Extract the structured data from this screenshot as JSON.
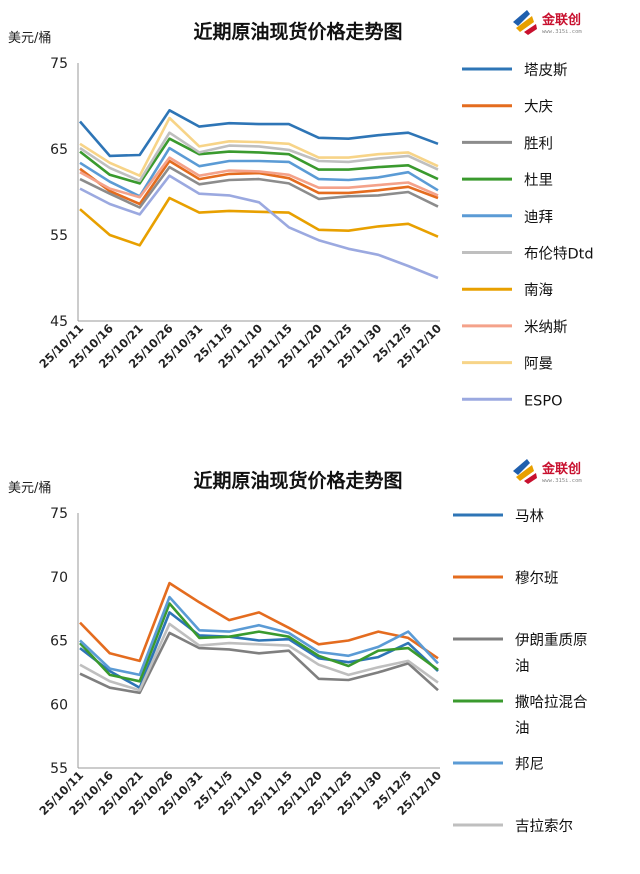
{
  "logo": {
    "name": "金联创",
    "url": "www.315i.com"
  },
  "chart_data": [
    {
      "type": "line",
      "title": "近期原油现货价格走势图",
      "ylabel": "美元/桶",
      "ylim": [
        45,
        75
      ],
      "yticks": [
        45,
        55,
        65,
        75
      ],
      "x": [
        "25/10/11",
        "25/10/16",
        "25/10/21",
        "25/10/26",
        "25/10/31",
        "25/11/5",
        "25/11/10",
        "25/11/15",
        "25/11/20",
        "25/11/25",
        "25/11/30",
        "25/12/5",
        "25/12/10"
      ],
      "xtick_labels": [
        "25/10/11",
        "25/10/16",
        "25/10/21",
        "25/10/26",
        "25/10/31",
        "25/11/5",
        "25/11/10",
        "25/11/15",
        "25/11/20",
        "25/11/25",
        "25/11/30",
        "25/12/5",
        "25/12/10"
      ],
      "legend_position": "right",
      "series": [
        {
          "name": "塔皮斯",
          "color": "#2e75b6",
          "values": [
            68.2,
            64.2,
            64.3,
            69.5,
            67.6,
            68.0,
            67.9,
            67.9,
            66.3,
            66.2,
            66.6,
            66.9,
            65.6
          ]
        },
        {
          "name": "大庆",
          "color": "#e46c1f",
          "values": [
            62.7,
            60.1,
            58.6,
            63.6,
            61.5,
            62.1,
            62.2,
            61.6,
            59.9,
            59.9,
            60.2,
            60.6,
            59.3
          ]
        },
        {
          "name": "胜利",
          "color": "#8c8c8c",
          "values": [
            61.5,
            59.8,
            58.2,
            62.9,
            60.9,
            61.4,
            61.5,
            61.0,
            59.2,
            59.5,
            59.6,
            60.0,
            58.3
          ]
        },
        {
          "name": "杜里",
          "color": "#3a9a2e",
          "values": [
            64.7,
            62.0,
            61.0,
            66.2,
            64.4,
            64.7,
            64.6,
            64.4,
            62.6,
            62.6,
            62.9,
            63.1,
            61.5
          ]
        },
        {
          "name": "迪拜",
          "color": "#5b9bd5",
          "values": [
            63.4,
            61.2,
            59.5,
            65.1,
            63.0,
            63.6,
            63.6,
            63.5,
            61.5,
            61.4,
            61.7,
            62.3,
            60.2
          ]
        },
        {
          "name": "布伦特Dtd",
          "color": "#bfbfbf",
          "values": [
            65.1,
            62.8,
            61.3,
            66.9,
            64.6,
            65.4,
            65.3,
            64.9,
            63.6,
            63.5,
            63.9,
            64.2,
            62.6
          ]
        },
        {
          "name": "南海",
          "color": "#e8a000",
          "values": [
            58.0,
            55.0,
            53.8,
            59.3,
            57.6,
            57.8,
            57.7,
            57.6,
            55.6,
            55.5,
            56.0,
            56.3,
            54.8
          ]
        },
        {
          "name": "米纳斯",
          "color": "#f4a28a",
          "values": [
            62.3,
            60.4,
            59.4,
            64.0,
            61.9,
            62.5,
            62.4,
            62.0,
            60.5,
            60.5,
            60.8,
            61.1,
            59.6
          ]
        },
        {
          "name": "阿曼",
          "color": "#f7d488",
          "values": [
            65.6,
            63.4,
            61.9,
            68.6,
            65.3,
            65.9,
            65.8,
            65.6,
            64.0,
            64.0,
            64.4,
            64.6,
            63.0
          ]
        },
        {
          "name": "ESPO",
          "color": "#9ba9e0",
          "values": [
            60.4,
            58.6,
            57.4,
            61.9,
            59.8,
            59.6,
            58.8,
            55.9,
            54.4,
            53.4,
            52.7,
            51.4,
            50.0
          ]
        }
      ]
    },
    {
      "type": "line",
      "title": "近期原油现货价格走势图",
      "ylabel": "美元/桶",
      "ylim": [
        55,
        75
      ],
      "yticks": [
        55,
        60,
        65,
        70,
        75
      ],
      "x": [
        "25/10/11",
        "25/10/16",
        "25/10/21",
        "25/10/26",
        "25/10/31",
        "25/11/5",
        "25/11/10",
        "25/11/15",
        "25/11/20",
        "25/11/25",
        "25/11/30",
        "25/12/5",
        "25/12/10"
      ],
      "xtick_labels": [
        "25/10/11",
        "25/10/16",
        "25/10/21",
        "25/10/26",
        "25/10/31",
        "25/11/5",
        "25/11/10",
        "25/11/15",
        "25/11/20",
        "25/11/25",
        "25/11/30",
        "25/12/5",
        "25/12/10"
      ],
      "legend_position": "right",
      "series": [
        {
          "name": "马林",
          "color": "#2e75b6",
          "values": [
            64.4,
            62.6,
            61.3,
            67.2,
            65.4,
            65.3,
            65.0,
            65.1,
            63.6,
            63.3,
            63.7,
            64.8,
            62.6
          ]
        },
        {
          "name": "穆尔班",
          "color": "#e46c1f",
          "values": [
            66.4,
            64.0,
            63.4,
            69.5,
            68.0,
            66.6,
            67.2,
            66.0,
            64.7,
            65.0,
            65.7,
            65.2,
            63.6
          ]
        },
        {
          "name": "伊朗重质原油",
          "color": "#7f7f7f",
          "values": [
            62.4,
            61.3,
            60.9,
            65.6,
            64.4,
            64.3,
            64.0,
            64.2,
            62.0,
            61.9,
            62.5,
            63.2,
            61.1
          ]
        },
        {
          "name": "撒哈拉混合油",
          "color": "#3a9a2e",
          "values": [
            64.8,
            62.3,
            61.8,
            67.9,
            65.2,
            65.3,
            65.7,
            65.3,
            63.8,
            63.0,
            64.2,
            64.4,
            62.7
          ]
        },
        {
          "name": "邦尼",
          "color": "#5b9bd5",
          "values": [
            65.0,
            62.8,
            62.3,
            68.4,
            65.8,
            65.7,
            66.2,
            65.6,
            64.1,
            63.8,
            64.5,
            65.7,
            63.2
          ]
        },
        {
          "name": "吉拉索尔",
          "color": "#bfbfbf",
          "values": [
            63.1,
            61.8,
            61.1,
            66.3,
            64.6,
            64.8,
            64.7,
            64.6,
            63.1,
            62.3,
            62.9,
            63.4,
            61.7
          ]
        }
      ]
    }
  ],
  "legend_bottom_wrapped": [
    [
      "伊朗重质原",
      "油"
    ],
    [
      "撒哈拉混合",
      "油"
    ]
  ]
}
